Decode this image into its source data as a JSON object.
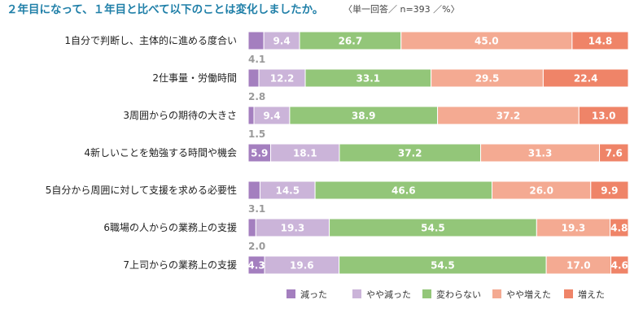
{
  "chart_data": {
    "type": "bar",
    "orientation": "horizontal",
    "stacked": true,
    "percent_stacked": true,
    "title": "２年目になって、１年目と比べて以下のことは変化しましたか。",
    "subtitle": "〈単一回答／ n=393 ／%〉",
    "categories": [
      "1自分で判断し、主体的に進める度合い",
      "2仕事量・労働時間",
      "3周囲からの期待の大きさ",
      "4新しいことを勉強する時間や機会",
      "5自分から周囲に対して支援を求める必要性",
      "6職場の人からの業務上の支援",
      "7上司からの業務上の支援"
    ],
    "series": [
      {
        "name": "減った",
        "color": "#a47fbf",
        "values": [
          4.1,
          2.8,
          1.5,
          5.9,
          3.1,
          2.0,
          4.3
        ]
      },
      {
        "name": "やや減った",
        "color": "#cbb4d9",
        "values": [
          9.4,
          12.2,
          9.4,
          18.1,
          14.5,
          19.3,
          19.6
        ]
      },
      {
        "name": "変わらない",
        "color": "#93c679",
        "values": [
          26.7,
          33.1,
          38.9,
          37.2,
          46.6,
          54.5,
          54.5
        ]
      },
      {
        "name": "やや増えた",
        "color": "#f4aa92",
        "values": [
          45.0,
          29.5,
          37.2,
          31.3,
          26.0,
          19.3,
          17.0
        ]
      },
      {
        "name": "増えた",
        "color": "#ef8468",
        "values": [
          14.8,
          22.4,
          13.0,
          7.6,
          9.9,
          4.8,
          4.6
        ]
      }
    ],
    "xlim": [
      0,
      100
    ],
    "legend_position": "bottom",
    "grid": false
  }
}
